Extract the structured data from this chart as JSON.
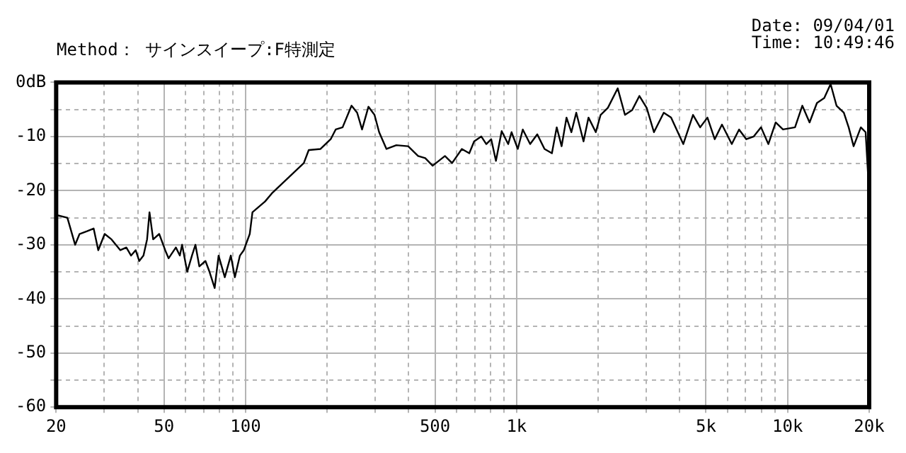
{
  "chart_data": {
    "type": "line",
    "subtitle": "Method： サインスイープ:F特測定",
    "annotations": [
      "Date: 09/04/01",
      "Time: 10:49:46"
    ],
    "log": "x",
    "grid": true,
    "legend": false,
    "marker": "none",
    "line_style": "solid",
    "xlim": [
      20,
      20000
    ],
    "xticks": [
      20,
      {
        "value": 30,
        "label": null
      },
      {
        "value": 40,
        "label": null
      },
      50,
      {
        "value": 60,
        "label": null
      },
      {
        "value": 70,
        "label": null
      },
      {
        "value": 80,
        "label": null
      },
      {
        "value": 90,
        "label": null
      },
      100,
      {
        "value": 200,
        "label": null
      },
      {
        "value": 300,
        "label": null
      },
      {
        "value": 400,
        "label": null
      },
      500,
      {
        "value": 600,
        "label": null
      },
      {
        "value": 700,
        "label": null
      },
      {
        "value": 800,
        "label": null
      },
      {
        "value": 900,
        "label": null
      },
      {
        "value": 1000,
        "label": "1k"
      },
      {
        "value": 2000,
        "label": null
      },
      {
        "value": 3000,
        "label": null
      },
      {
        "value": 4000,
        "label": null
      },
      {
        "value": 5000,
        "label": "5k"
      },
      {
        "value": 6000,
        "label": null
      },
      {
        "value": 7000,
        "label": null
      },
      {
        "value": 8000,
        "label": null
      },
      {
        "value": 9000,
        "label": null
      },
      {
        "value": 10000,
        "label": "10k"
      },
      {
        "value": 20000,
        "label": "20k"
      }
    ],
    "ylim": [
      -60,
      0
    ],
    "yticks": [
      -60,
      {
        "value": -55,
        "label": null
      },
      -50,
      {
        "value": -45,
        "label": null
      },
      -40,
      {
        "value": -35,
        "label": null
      },
      -30,
      {
        "value": -25,
        "label": null
      },
      -20,
      {
        "value": -15,
        "label": null
      },
      -10,
      {
        "value": -5,
        "label": null
      },
      {
        "value": 0,
        "label": "0dB"
      }
    ],
    "series": [
      {
        "color": "#000000",
        "x": [
          20,
          22,
          23.5,
          24.4,
          26,
          27.5,
          28.6,
          30.2,
          32,
          34.5,
          36.3,
          37.8,
          39.3,
          40.5,
          42,
          43.3,
          44.2,
          45.6,
          48,
          50.5,
          52,
          55.3,
          57.2,
          58.3,
          60.9,
          63.4,
          65.3,
          67.5,
          71.1,
          73.6,
          76.9,
          79.5,
          83.8,
          88.2,
          91.3,
          95.3,
          98.5,
          103.6,
          106,
          118,
          125,
          164,
          171,
          189,
          206,
          215,
          228,
          246,
          258,
          269,
          284,
          299,
          311,
          331,
          360,
          398,
          433,
          460,
          490,
          544,
          578,
          628,
          669,
          697,
          741,
          773,
          806,
          839,
          881,
          931,
          958,
          1010,
          1054,
          1122,
          1192,
          1268,
          1350,
          1406,
          1466,
          1528,
          1593,
          1660,
          1766,
          1842,
          1960,
          2042,
          2171,
          2361,
          2511,
          2670,
          2839,
          3020,
          3212,
          3491,
          3715,
          4121,
          4477,
          4757,
          5060,
          5383,
          5725,
          6223,
          6620,
          7040,
          7500,
          7980,
          8490,
          9035,
          9615,
          10650,
          11330,
          12050,
          12830,
          13650,
          14410,
          15150,
          16120,
          16800,
          17520,
          18630,
          19400,
          20000
        ],
        "values": [
          -24.5,
          -25,
          -30,
          -28,
          -27.5,
          -27,
          -31,
          -28,
          -29,
          -31,
          -30.5,
          -32,
          -31,
          -33,
          -32,
          -29,
          -24,
          -29,
          -28,
          -31,
          -32.5,
          -30.5,
          -32,
          -30,
          -35,
          -32,
          -30,
          -34,
          -33,
          -35,
          -38,
          -32,
          -36,
          -32,
          -36,
          -32,
          -31,
          -28,
          -24,
          -22,
          -20.5,
          -14.9,
          -12.5,
          -12.3,
          -10.5,
          -8.7,
          -8.3,
          -4.3,
          -5.6,
          -8.7,
          -4.5,
          -6,
          -9.2,
          -12.3,
          -11.6,
          -11.8,
          -13.6,
          -14,
          -15.4,
          -13.6,
          -14.9,
          -12.3,
          -13.1,
          -10.9,
          -10,
          -11.4,
          -10.5,
          -14.5,
          -9,
          -11.4,
          -9.2,
          -12.3,
          -8.7,
          -11.4,
          -9.6,
          -12.3,
          -13.1,
          -8.3,
          -11.8,
          -6.5,
          -9.2,
          -5.6,
          -10.9,
          -6.5,
          -9.2,
          -6,
          -4.7,
          -1.1,
          -6,
          -5.1,
          -2.5,
          -4.7,
          -9.2,
          -5.6,
          -6.5,
          -11.4,
          -6,
          -8.3,
          -6.5,
          -10.5,
          -7.8,
          -11.4,
          -8.7,
          -10.5,
          -10,
          -8.3,
          -11.4,
          -7.4,
          -8.7,
          -8.3,
          -4.3,
          -7.4,
          -3.8,
          -2.9,
          -0.3,
          -4.3,
          -5.6,
          -8.3,
          -11.8,
          -8.3,
          -9.2,
          -20.7
        ]
      }
    ]
  }
}
